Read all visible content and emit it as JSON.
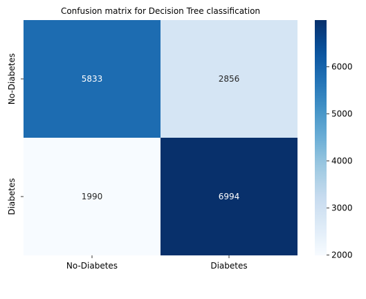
{
  "chart_data": {
    "type": "heatmap",
    "title": "Confusion matrix for Decision Tree classification",
    "xlabel": "",
    "ylabel": "",
    "x_categories": [
      "No-Diabetes",
      "Diabetes"
    ],
    "y_categories": [
      "No-Diabetes",
      "Diabetes"
    ],
    "values": [
      [
        5833,
        2856
      ],
      [
        1990,
        6994
      ]
    ],
    "colormap": "Blues",
    "colorbar": {
      "vmin": 1990,
      "vmax": 6994,
      "ticks": [
        2000,
        3000,
        4000,
        5000,
        6000
      ],
      "tick_labels": [
        "2000",
        "3000",
        "4000",
        "5000",
        "6000"
      ]
    },
    "grid": false
  }
}
